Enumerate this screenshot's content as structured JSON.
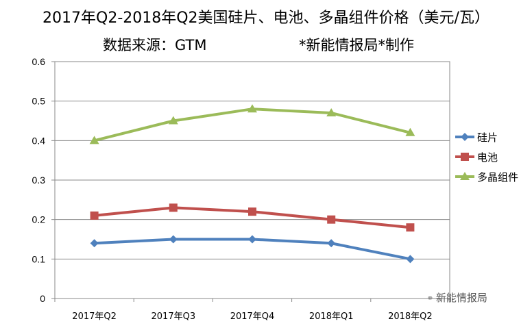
{
  "chart_data": {
    "type": "line",
    "title": "2017年Q2-2018年Q2美国硅片、电池、多晶组件价格（美元/瓦）",
    "subtitle_source": "数据来源：GTM",
    "subtitle_maker": "*新能情报局*制作",
    "categories": [
      "2017年Q2",
      "2017年Q3",
      "2017年Q4",
      "2018年Q1",
      "2018年Q2"
    ],
    "series": [
      {
        "name": "硅片",
        "values": [
          0.14,
          0.15,
          0.15,
          0.14,
          0.1
        ],
        "color": "#4f81bd",
        "marker": "diamond"
      },
      {
        "name": "电池",
        "values": [
          0.21,
          0.23,
          0.22,
          0.2,
          0.18
        ],
        "color": "#c0504d",
        "marker": "square"
      },
      {
        "name": "多晶组件",
        "values": [
          0.4,
          0.45,
          0.48,
          0.47,
          0.42
        ],
        "color": "#9bbb59",
        "marker": "triangle"
      }
    ],
    "ylim": [
      0,
      0.6
    ],
    "yticks": [
      "0",
      "0.1",
      "0.2",
      "0.3",
      "0.4",
      "0.5",
      "0.6"
    ],
    "grid": true,
    "legend_position": "right"
  },
  "watermark": "新能情报局",
  "watermark_icon": "wechat-icon"
}
